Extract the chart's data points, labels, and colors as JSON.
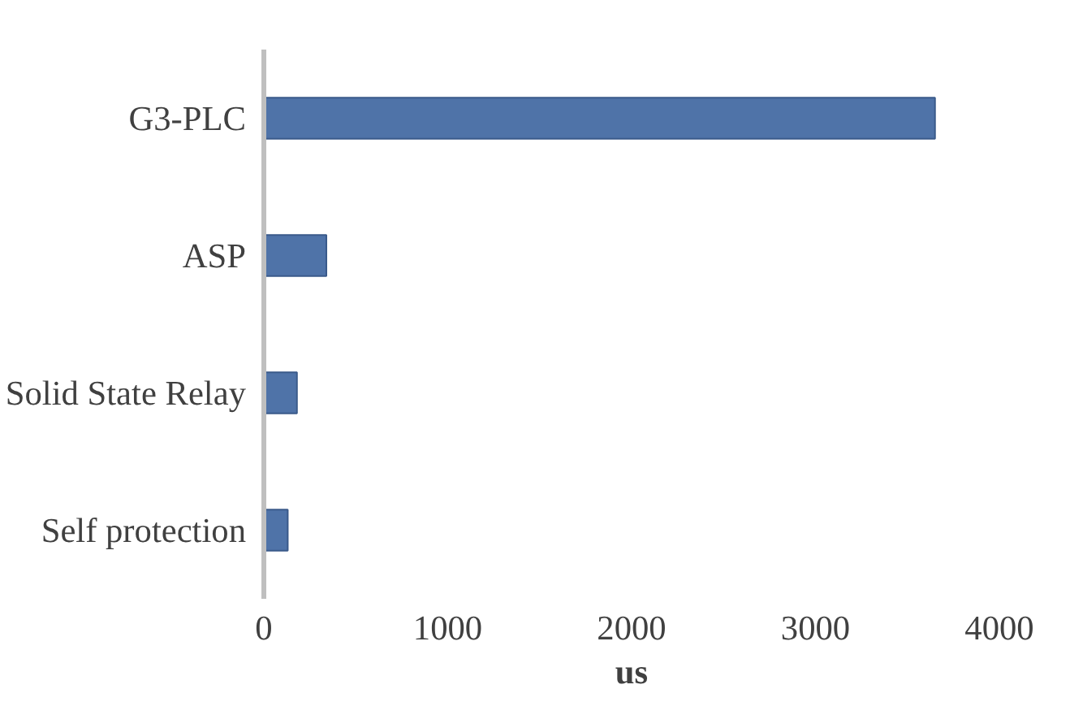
{
  "chart_data": {
    "type": "bar",
    "orientation": "horizontal",
    "xlabel": "us",
    "categories": [
      "G3-PLC",
      "ASP",
      "Solid State Relay",
      "Self protection"
    ],
    "values": [
      3650,
      340,
      180,
      130
    ],
    "color": "#4f73a8",
    "xlim": [
      0,
      4000
    ],
    "xticks": [
      0,
      1000,
      2000,
      3000,
      4000
    ],
    "grid": false
  }
}
